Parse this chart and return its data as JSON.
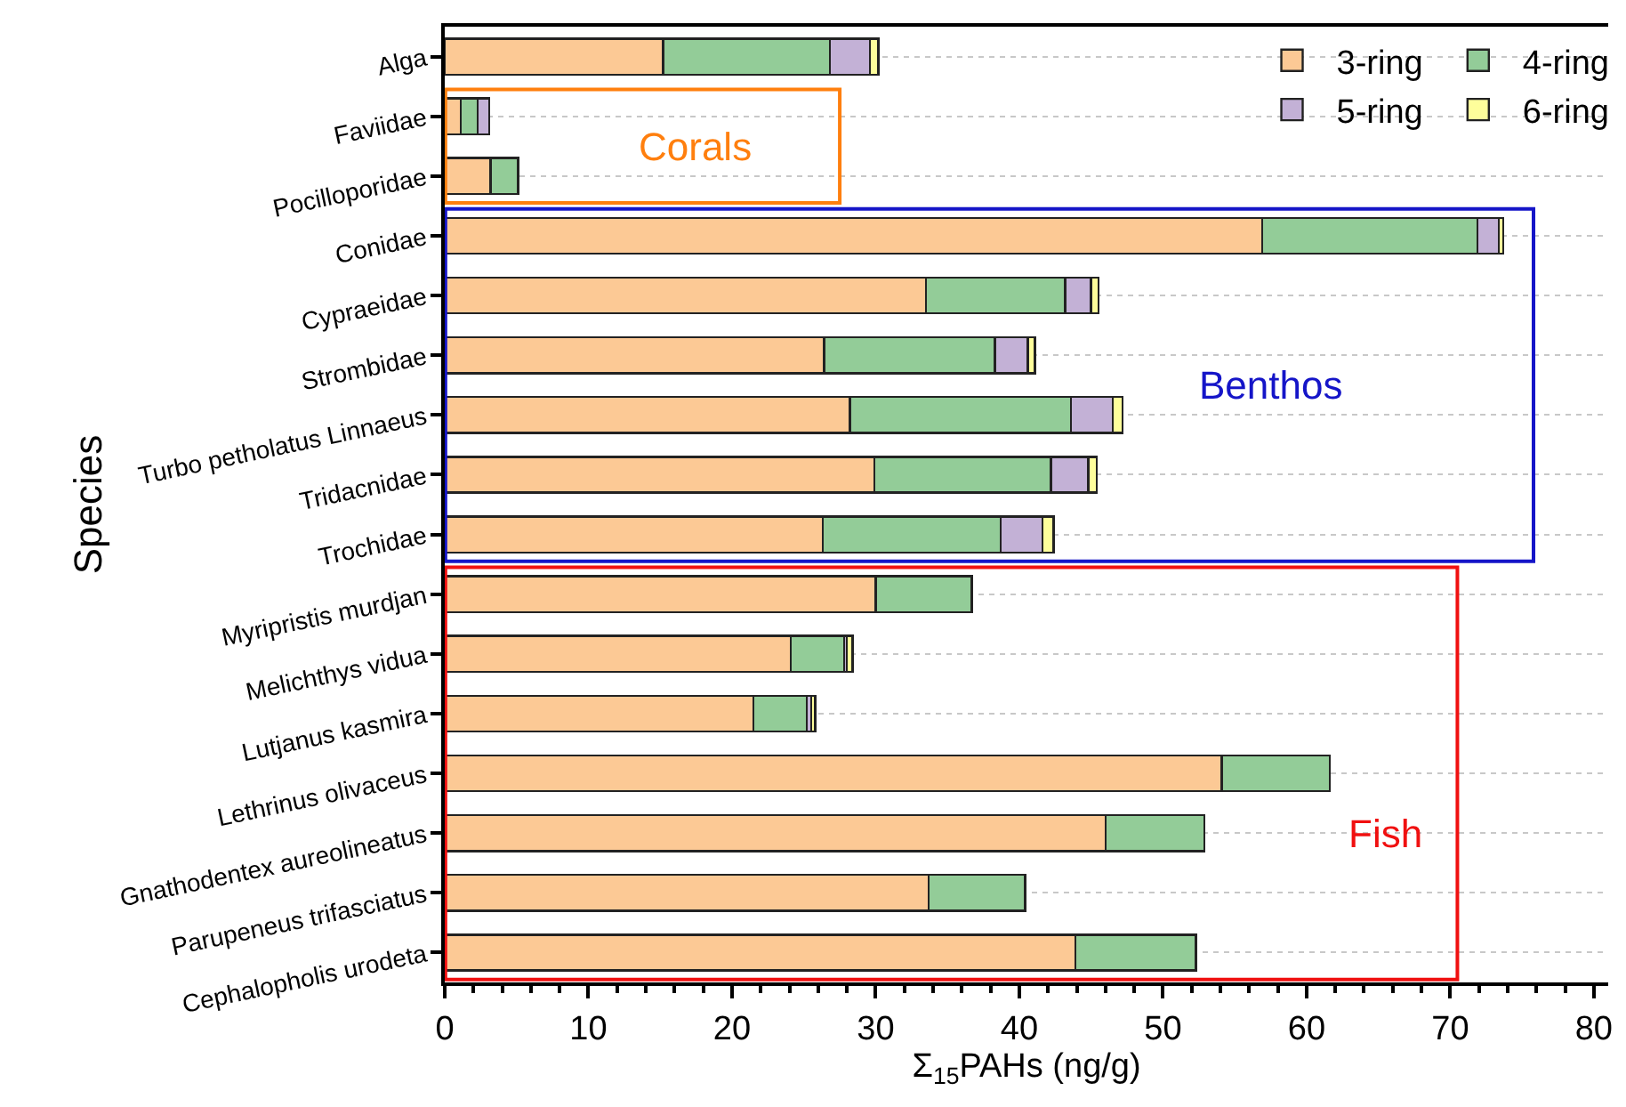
{
  "chart_data": {
    "type": "bar",
    "orientation": "horizontal",
    "stacked": true,
    "categories": [
      "Alga",
      "Faviidae",
      "Pocilloporidae",
      "Conidae",
      "Cypraeidae",
      "Strombidae",
      "Turbo petholatus Linnaeus",
      "Tridacnidae",
      "Trochidae",
      "Myripristis murdjan",
      "Melichthys vidua",
      "Lutjanus kasmira",
      "Lethrinus olivaceus",
      "Gnathodentex aureolineatus",
      "Parupeneus trifasciatus",
      "Cephalopholis urodeta"
    ],
    "series": [
      {
        "name": "3-ring",
        "color": "#fcc995",
        "values": [
          15.2,
          1.1,
          3.2,
          56.9,
          33.5,
          26.4,
          28.2,
          29.9,
          26.3,
          30.0,
          24.1,
          21.5,
          54.1,
          46.0,
          33.7,
          43.9
        ]
      },
      {
        "name": "4-ring",
        "color": "#93cc98",
        "values": [
          11.6,
          1.2,
          1.9,
          15.0,
          9.7,
          11.9,
          15.4,
          12.3,
          12.4,
          6.7,
          3.7,
          3.7,
          7.5,
          6.9,
          6.7,
          8.4
        ]
      },
      {
        "name": "5-ring",
        "color": "#c3b1d6",
        "values": [
          2.8,
          0.8,
          null,
          1.5,
          1.8,
          2.3,
          2.9,
          2.6,
          2.9,
          null,
          0.2,
          0.3,
          null,
          null,
          null,
          null
        ]
      },
      {
        "name": "6-ring",
        "color": "#fefe9b",
        "values": [
          0.6,
          null,
          null,
          0.3,
          0.5,
          0.5,
          0.7,
          0.6,
          0.8,
          null,
          0.4,
          0.3,
          null,
          null,
          null,
          null
        ]
      }
    ],
    "xlabel": "Σ$_{15}$PAHs (ng/g)",
    "ylabel": "Species",
    "xlim": [
      0,
      81
    ],
    "xticks": [
      0,
      10,
      20,
      30,
      40,
      50,
      60,
      70,
      80
    ],
    "annotations": [
      "Corals",
      "Benthos",
      "Fish"
    ],
    "grid": "y",
    "legend": "top right"
  }
}
